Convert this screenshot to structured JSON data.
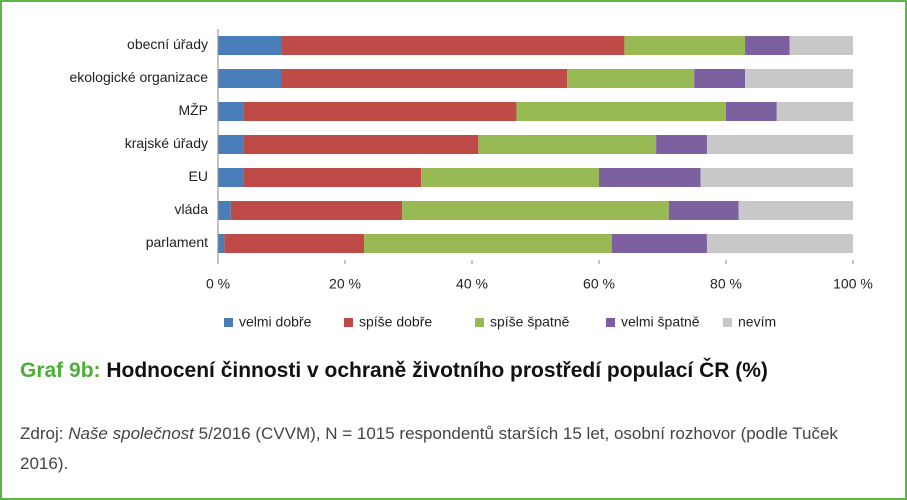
{
  "chart_data": {
    "type": "stacked-barh",
    "categories": [
      "obecní úřady",
      "ekologické organizace",
      "MŽP",
      "krajské úřady",
      "EU",
      "vláda",
      "parlament"
    ],
    "series": [
      {
        "name": "velmi dobře",
        "color": "#4a7ebb",
        "values": [
          10,
          10,
          4,
          4,
          4,
          2,
          1
        ]
      },
      {
        "name": "spíše dobře",
        "color": "#be4b48",
        "values": [
          54,
          45,
          43,
          37,
          28,
          27,
          22
        ]
      },
      {
        "name": "spíše špatně",
        "color": "#98b954",
        "values": [
          19,
          20,
          33,
          28,
          28,
          42,
          39
        ]
      },
      {
        "name": "velmi špatně",
        "color": "#7d60a0",
        "values": [
          7,
          8,
          8,
          8,
          16,
          11,
          15
        ]
      },
      {
        "name": "nevím",
        "color": "#c8c8c8",
        "values": [
          10,
          17,
          12,
          23,
          24,
          18,
          23
        ]
      }
    ],
    "xlim": [
      0,
      100
    ],
    "xticks": [
      {
        "value": 0,
        "label": "0 %"
      },
      {
        "value": 20,
        "label": "20 %"
      },
      {
        "value": 40,
        "label": "40 %"
      },
      {
        "value": 60,
        "label": "60 %"
      },
      {
        "value": 80,
        "label": "80 %"
      },
      {
        "value": 100,
        "label": "100 %"
      }
    ],
    "legend": "bottom"
  },
  "caption": {
    "label": "Graf 9b:",
    "title": "Hodnocení činnosti v ochraně životního prostředí populací ČR (%)"
  },
  "source": {
    "prefix": "Zdroj:",
    "publication": "Naše společnost",
    "rest": "5/2016 (CVVM), N = 1015 respondentů starších 15 let, osobní rozhovor (podle Tuček 2016)."
  }
}
